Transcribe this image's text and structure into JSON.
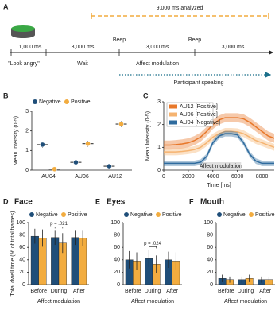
{
  "panel_a": {
    "label": "A",
    "analyzed": "9,000 ms analyzed",
    "durations": [
      "1,000 ms",
      "3,000 ms",
      "3,000 ms",
      "3,000 ms"
    ],
    "beeps": [
      "Beep",
      "Beep"
    ],
    "phases": [
      "\"Look angry\"",
      "Wait",
      "Affect modulation"
    ],
    "speaking": "Participant speaking"
  },
  "chart_data": [
    {
      "panel": "B",
      "type": "dot",
      "ylabel": "Mean Intensity (0-5)",
      "categories": [
        "AU04",
        "AU06",
        "AU12"
      ],
      "ylim": [
        0,
        3
      ],
      "yticks": [
        0,
        1,
        2,
        3
      ],
      "series": [
        {
          "name": "Negative",
          "color": "#1f4e79",
          "values": [
            1.3,
            0.4,
            0.2
          ],
          "errors": [
            0.15,
            0.15,
            0.1
          ]
        },
        {
          "name": "Positive",
          "color": "#f2ac3f",
          "values": [
            0.05,
            1.35,
            2.35
          ],
          "errors": [
            0.05,
            0.15,
            0.15
          ]
        }
      ]
    },
    {
      "panel": "C",
      "type": "line",
      "xlabel": "Time [ms]",
      "ylabel": "Mean Intensity (0-5)",
      "x": [
        0,
        500,
        1000,
        1500,
        2000,
        2500,
        3000,
        3500,
        4000,
        4500,
        5000,
        5500,
        6000,
        6500,
        7000,
        7500,
        8000,
        8500,
        9000
      ],
      "xlim": [
        0,
        9000
      ],
      "xticks": [
        0,
        2000,
        4000,
        6000,
        8000
      ],
      "ylim": [
        0,
        3
      ],
      "yticks": [
        0,
        1,
        2,
        3
      ],
      "annotation": "Affect modulation",
      "annotation_range": [
        3000,
        6300
      ],
      "series": [
        {
          "name": "AU12 [Positive]",
          "color": "#e8782a",
          "error": 0.2,
          "values": [
            1.1,
            1.1,
            1.12,
            1.15,
            1.2,
            1.3,
            1.45,
            1.7,
            2.0,
            2.2,
            2.3,
            2.3,
            2.3,
            2.25,
            2.1,
            1.9,
            1.7,
            1.5,
            1.4
          ]
        },
        {
          "name": "AU06 [Positive]",
          "color": "#f5b370",
          "error": 0.15,
          "values": [
            0.8,
            0.8,
            0.8,
            0.82,
            0.85,
            0.9,
            1.0,
            1.2,
            1.45,
            1.6,
            1.7,
            1.7,
            1.68,
            1.6,
            1.45,
            1.3,
            1.2,
            1.1,
            1.0
          ]
        },
        {
          "name": "AU04 [Negative]",
          "color": "#2e6b9e",
          "error": 0.12,
          "values": [
            0.3,
            0.3,
            0.3,
            0.3,
            0.3,
            0.3,
            0.35,
            0.6,
            1.2,
            1.5,
            1.6,
            1.6,
            1.55,
            1.2,
            0.7,
            0.4,
            0.3,
            0.3,
            0.3
          ]
        }
      ]
    },
    {
      "panel": "D",
      "type": "bar",
      "title": "Face",
      "ylabel": "Total dwell time (% of total frames)",
      "xlabel": "Affect modulation",
      "categories": [
        "Before",
        "During",
        "After"
      ],
      "ylim": [
        0,
        100
      ],
      "yticks": [
        0,
        20,
        40,
        60,
        80,
        100
      ],
      "annotation": "p = .021",
      "series": [
        {
          "name": "Negative",
          "color": "#1f4e79",
          "values": [
            78,
            76,
            76
          ],
          "errors": [
            12,
            12,
            12
          ]
        },
        {
          "name": "Positive",
          "color": "#f2ac3f",
          "values": [
            75,
            67,
            75
          ],
          "errors": [
            14,
            16,
            13
          ]
        }
      ]
    },
    {
      "panel": "E",
      "type": "bar",
      "title": "Eyes",
      "xlabel": "Affect modulation",
      "categories": [
        "Before",
        "During",
        "After"
      ],
      "ylim": [
        0,
        100
      ],
      "yticks": [
        0,
        20,
        40,
        60,
        80,
        100
      ],
      "annotation": "p = .024",
      "series": [
        {
          "name": "Negative",
          "color": "#1f4e79",
          "values": [
            40,
            42,
            40
          ],
          "errors": [
            14,
            14,
            13
          ]
        },
        {
          "name": "Positive",
          "color": "#f2ac3f",
          "values": [
            38,
            33,
            38
          ],
          "errors": [
            14,
            14,
            14
          ]
        }
      ]
    },
    {
      "panel": "F",
      "type": "bar",
      "title": "Mouth",
      "xlabel": "Affect modulation",
      "categories": [
        "Before",
        "During",
        "After"
      ],
      "ylim": [
        0,
        100
      ],
      "yticks": [
        0,
        20,
        40,
        60,
        80,
        100
      ],
      "series": [
        {
          "name": "Negative",
          "color": "#1f4e79",
          "values": [
            10,
            8,
            8
          ],
          "errors": [
            6,
            5,
            5
          ]
        },
        {
          "name": "Positive",
          "color": "#f2ac3f",
          "values": [
            8,
            10,
            8
          ],
          "errors": [
            5,
            6,
            5
          ]
        }
      ]
    }
  ]
}
